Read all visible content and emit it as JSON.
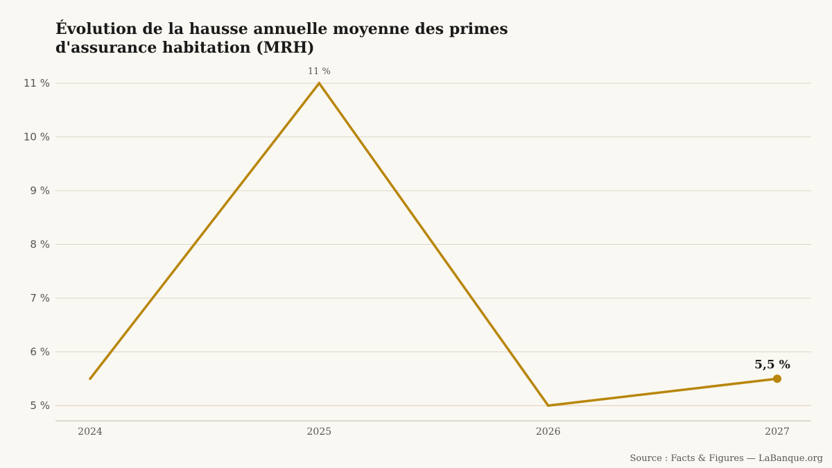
{
  "colors": {
    "line": "#b8860b",
    "grid": "#dcd6c8",
    "baseline": "#e2c9b4",
    "axis": "#bdb8ae",
    "background": "#faf8f2"
  },
  "title_lines": [
    "Évolution de la hausse annuelle moyenne des primes",
    "d'assurance habitation (MRH)"
  ],
  "source": "Source : Facts & Figures — LaBanque.org",
  "chart_data": {
    "type": "line",
    "title": "Évolution de la hausse annuelle moyenne des primes d'assurance habitation (MRH)",
    "categories": [
      "2024",
      "2025",
      "2026",
      "2027"
    ],
    "x": [
      2024,
      2025,
      2026,
      2027
    ],
    "values": [
      5.5,
      11,
      5,
      5.5
    ],
    "ylim": [
      5,
      11
    ],
    "yticks": [
      5,
      6,
      7,
      8,
      9,
      10,
      11
    ],
    "ytick_labels": [
      "5 %",
      "6 %",
      "7 %",
      "8 %",
      "9 %",
      "10 %",
      "11 %"
    ],
    "xtick_labels": [
      "2024",
      "2025",
      "2026",
      "2027"
    ],
    "grid": true,
    "legend": "none",
    "annotations": [
      {
        "x": 2025,
        "y": 11,
        "text": "11 %"
      },
      {
        "x": 2027,
        "y": 5.5,
        "text": "5,5 %",
        "marker": true
      }
    ]
  }
}
